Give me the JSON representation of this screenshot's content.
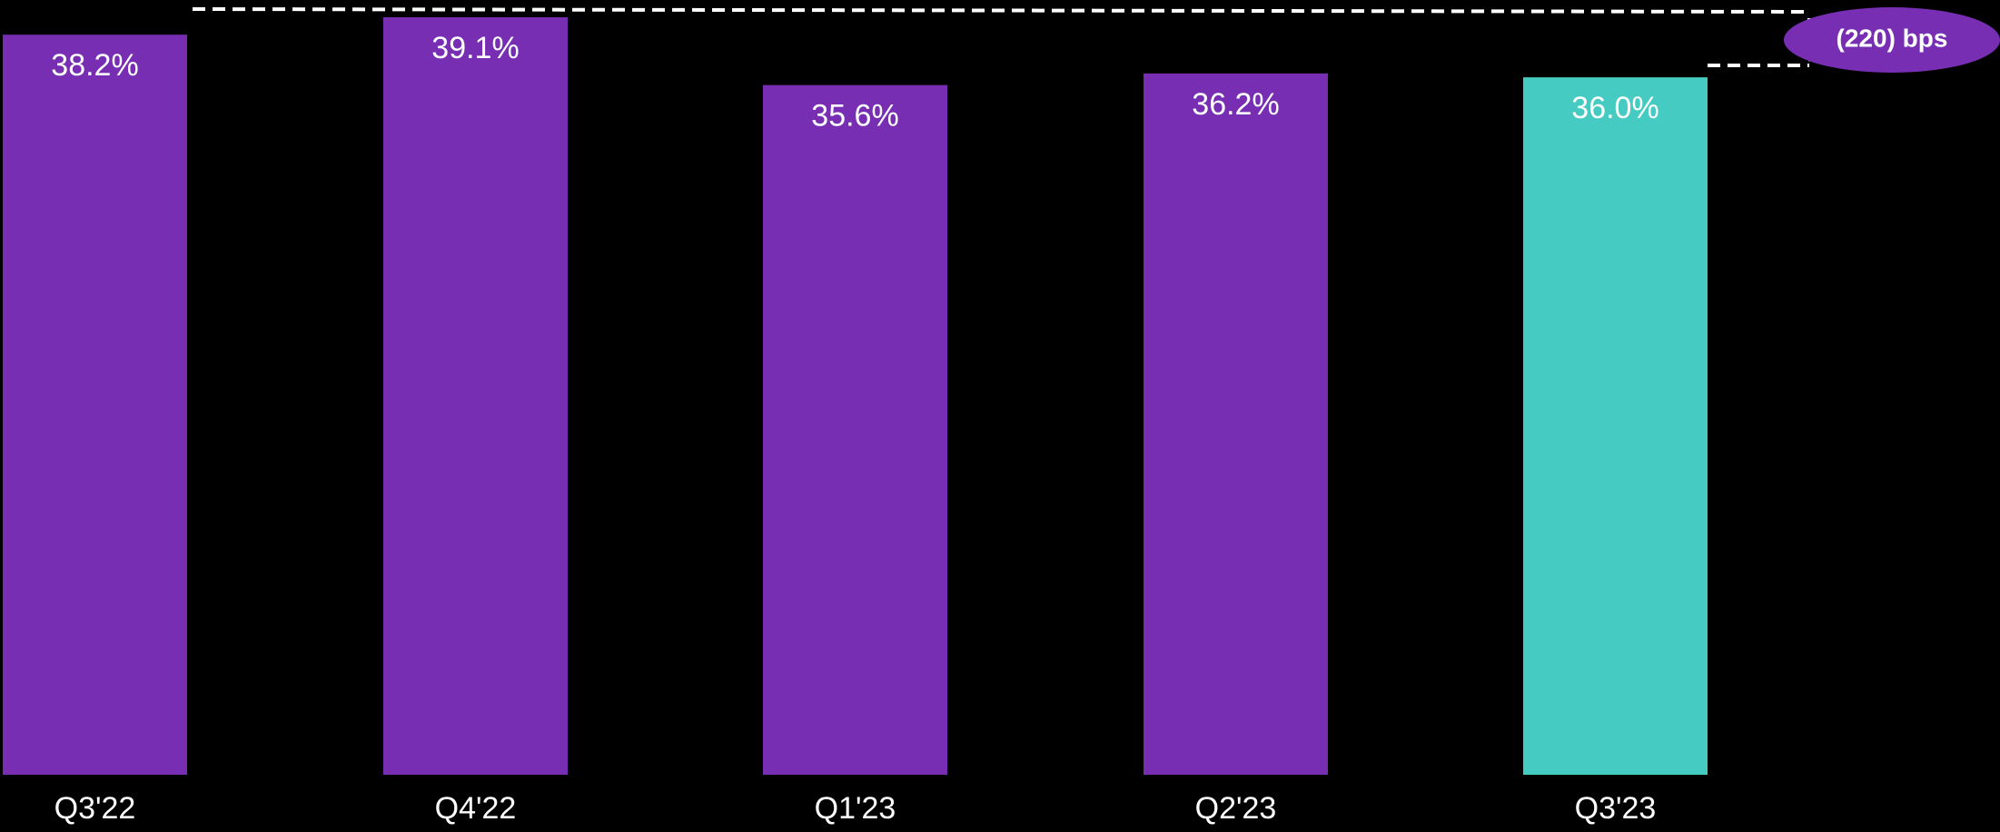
{
  "chart_data": {
    "type": "bar",
    "categories": [
      "Q3'22",
      "Q4'22",
      "Q1'23",
      "Q2'23",
      "Q3'23"
    ],
    "values": [
      38.2,
      39.1,
      35.6,
      36.2,
      36.0
    ],
    "value_labels": [
      "38.2%",
      "39.1%",
      "35.6%",
      "36.2%",
      "36.0%"
    ],
    "bar_colors": [
      "#772eb3",
      "#772eb3",
      "#772eb3",
      "#772eb3",
      "#45cbc2"
    ],
    "ylim": [
      0,
      40
    ],
    "grid": false,
    "legend": "none",
    "title": "",
    "xlabel": "",
    "ylabel": "",
    "annotation": {
      "text": "(220) bps",
      "from_category": "Q3'22",
      "to_category": "Q3'23",
      "color": "#772eb3"
    }
  },
  "colors": {
    "background": "#000000",
    "text": "#ffffff",
    "primary_bar": "#772eb3",
    "highlight_bar": "#45cbc2"
  }
}
